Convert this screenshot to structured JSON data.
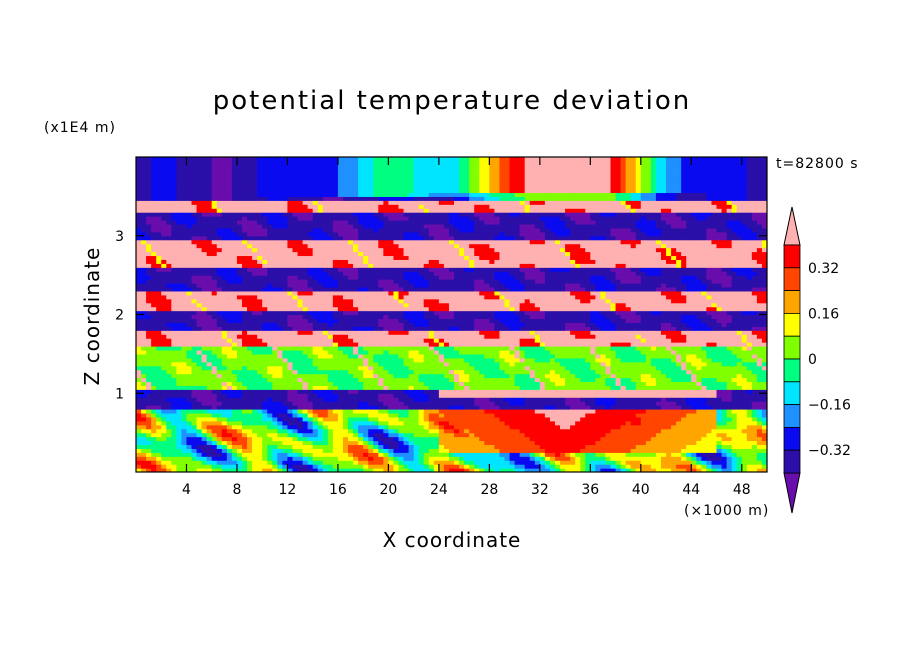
{
  "chart_data": {
    "type": "heatmap",
    "title": "potential temperature deviation",
    "xlabel": "X coordinate",
    "ylabel": "Z coordinate",
    "x_unit": "(×1000 m)",
    "y_unit": "(x1E4 m)",
    "time_label": "t=82800 s",
    "xlim": [
      0,
      50
    ],
    "ylim": [
      0,
      4
    ],
    "x_ticks": [
      "4",
      "8",
      "12",
      "16",
      "20",
      "24",
      "28",
      "32",
      "36",
      "40",
      "44",
      "48"
    ],
    "x_tick_values": [
      4,
      8,
      12,
      16,
      20,
      24,
      28,
      32,
      36,
      40,
      44,
      48
    ],
    "y_ticks": [
      "1",
      "2",
      "3"
    ],
    "y_tick_values": [
      1,
      2,
      3
    ],
    "colorbar": {
      "levels": [
        -0.4,
        -0.32,
        -0.24,
        -0.16,
        -0.08,
        0,
        0.08,
        0.16,
        0.24,
        0.32,
        0.4
      ],
      "labels": [
        "0.32",
        "0.16",
        "0",
        "−0.16",
        "−0.32"
      ],
      "label_values": [
        0.32,
        0.16,
        0,
        -0.16,
        -0.32
      ],
      "colors": [
        "#6a0dad",
        "#2b0fa8",
        "#0a0af0",
        "#1e90ff",
        "#00e5ff",
        "#00ff80",
        "#7fff00",
        "#ffff00",
        "#ffa500",
        "#ff4500",
        "#ff0000",
        "#ffb0b0"
      ]
    },
    "bands": [
      {
        "z0": 0.0,
        "z1": 0.8,
        "level": "mixed"
      },
      {
        "z0": 0.8,
        "z1": 1.05,
        "level": -0.36
      },
      {
        "z0": 1.05,
        "z1": 1.6,
        "level": 0.02
      },
      {
        "z0": 1.6,
        "z1": 1.8,
        "level": 0.44
      },
      {
        "z0": 1.8,
        "z1": 2.05,
        "level": -0.36
      },
      {
        "z0": 2.05,
        "z1": 2.3,
        "level": 0.44
      },
      {
        "z0": 2.3,
        "z1": 2.6,
        "level": -0.36
      },
      {
        "z0": 2.6,
        "z1": 2.95,
        "level": 0.44
      },
      {
        "z0": 2.95,
        "z1": 3.3,
        "level": -0.36
      },
      {
        "z0": 3.3,
        "z1": 3.45,
        "level": 0.44
      },
      {
        "z0": 3.45,
        "z1": 4.0,
        "level": "mixed"
      }
    ]
  }
}
